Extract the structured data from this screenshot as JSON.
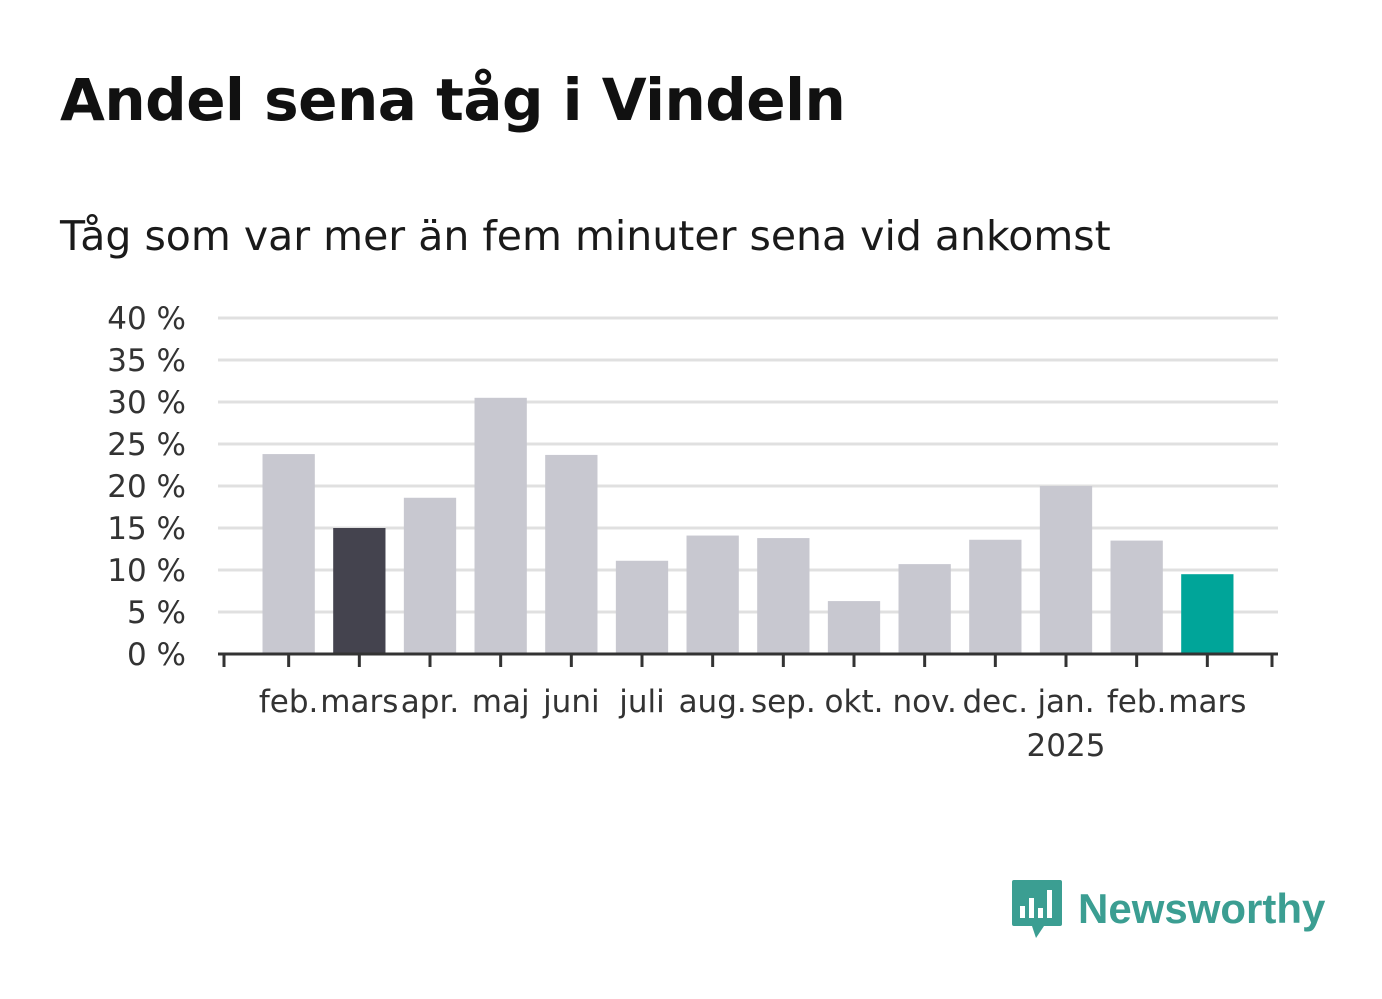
{
  "title": "Andel sena tåg i Vindeln",
  "subtitle": "Tåg som var mer än fem minuter sena vid ankomst",
  "brand": {
    "name": "Newsworthy",
    "icon": "bar-chart-speech-bubble-icon",
    "color": "#3b9e92"
  },
  "chart_data": {
    "type": "bar",
    "categories": [
      "feb.",
      "mars",
      "apr.",
      "maj",
      "juni",
      "juli",
      "aug.",
      "sep.",
      "okt.",
      "nov.",
      "dec.",
      "jan.",
      "feb.",
      "mars"
    ],
    "year_label": "2025",
    "year_label_under_index": 11,
    "values": [
      23.8,
      15.0,
      18.6,
      30.5,
      23.7,
      11.1,
      14.1,
      13.8,
      6.3,
      10.7,
      13.6,
      20.0,
      13.5,
      9.5
    ],
    "bar_colors": [
      "#c8c8d0",
      "#44434e",
      "#c8c8d0",
      "#c8c8d0",
      "#c8c8d0",
      "#c8c8d0",
      "#c8c8d0",
      "#c8c8d0",
      "#c8c8d0",
      "#c8c8d0",
      "#c8c8d0",
      "#c8c8d0",
      "#c8c8d0",
      "#00a599"
    ],
    "yticks": [
      0,
      5,
      10,
      15,
      20,
      25,
      30,
      35,
      40
    ],
    "ytick_labels": [
      "0 %",
      "5 %",
      "10 %",
      "15 %",
      "20 %",
      "25 %",
      "30 %",
      "35 %",
      "40 %"
    ],
    "ylim": [
      0,
      40
    ],
    "grid": true,
    "xlabel": "",
    "ylabel": ""
  }
}
